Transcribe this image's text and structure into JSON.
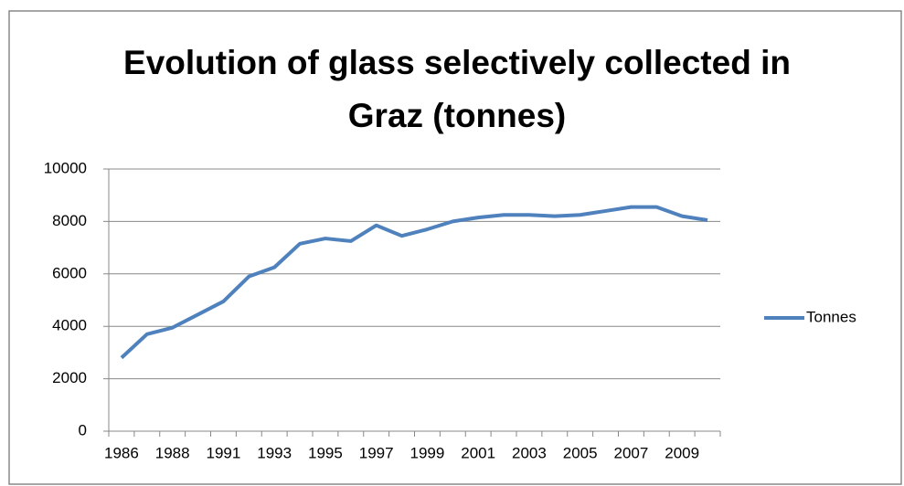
{
  "chart_data": {
    "type": "line",
    "title": "Evolution of glass selectively collected in Graz (tonnes)",
    "categories": [
      "1986",
      null,
      "1988",
      null,
      "1991",
      null,
      "1993",
      null,
      "1995",
      null,
      "1997",
      null,
      "1999",
      null,
      "2001",
      null,
      "2003",
      null,
      "2005",
      null,
      "2007",
      null,
      "2009",
      null
    ],
    "series": [
      {
        "name": "Tonnes",
        "color": "#4f81bd",
        "values": [
          2800,
          3700,
          3950,
          4450,
          4950,
          5900,
          6250,
          7150,
          7350,
          7250,
          7850,
          7450,
          7700,
          8000,
          8150,
          8250,
          8250,
          8200,
          8250,
          8400,
          8550,
          8550,
          8200,
          8050
        ]
      }
    ],
    "ylim": [
      0,
      10000
    ],
    "yticks": [
      0,
      2000,
      4000,
      6000,
      8000,
      10000
    ],
    "grid": true,
    "legend": "right"
  }
}
